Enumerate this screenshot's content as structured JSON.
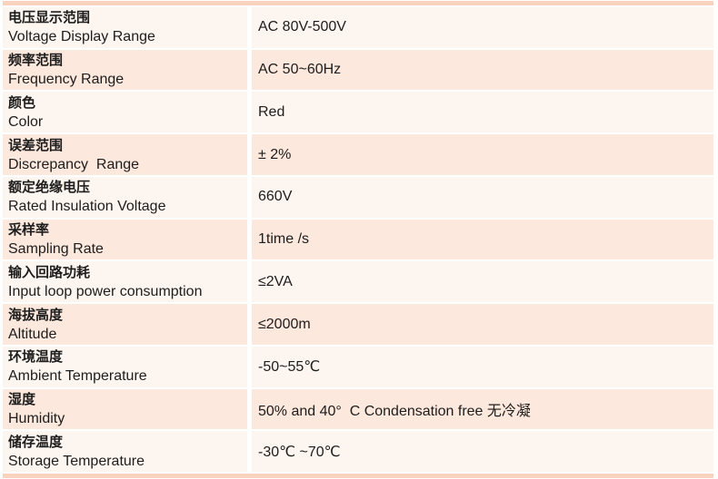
{
  "page": {
    "type": "product-specification-table",
    "background": "#ffffff"
  },
  "colors": {
    "border_bar": "#f8d3be",
    "row_light": "#fdf6f0",
    "row_pink": "#fce8dc",
    "text": "#1d1d1d",
    "gap": "#ffffff"
  },
  "table": {
    "columns": [
      "parameter",
      "value"
    ],
    "rows": [
      {
        "zh": "电压显示范围",
        "en": "Voltage Display Range",
        "value": "AC 80V-500V"
      },
      {
        "zh": "频率范围",
        "en": "Frequency Range",
        "value": "AC 50~60Hz"
      },
      {
        "zh": "颜色",
        "en": "Color",
        "value": "Red"
      },
      {
        "zh": "误差范围",
        "en": "Discrepancy  Range",
        "value": "± 2%"
      },
      {
        "zh": "额定绝缘电压",
        "en": "Rated Insulation Voltage",
        "value": "660V"
      },
      {
        "zh": "采样率",
        "en": "Sampling Rate",
        "value": "1time /s"
      },
      {
        "zh": "输入回路功耗",
        "en": "Input loop power consumption",
        "value": "≤2VA"
      },
      {
        "zh": "海拔高度",
        "en": "Altitude",
        "value": "≤2000m"
      },
      {
        "zh": "环境温度",
        "en": "Ambient Temperature",
        "value": "-50~55℃"
      },
      {
        "zh": "湿度",
        "en": "Humidity",
        "value": "50% and 40°  C Condensation free 无冷凝"
      },
      {
        "zh": "储存温度",
        "en": "Storage Temperature",
        "value": "-30℃ ~70℃"
      }
    ]
  }
}
